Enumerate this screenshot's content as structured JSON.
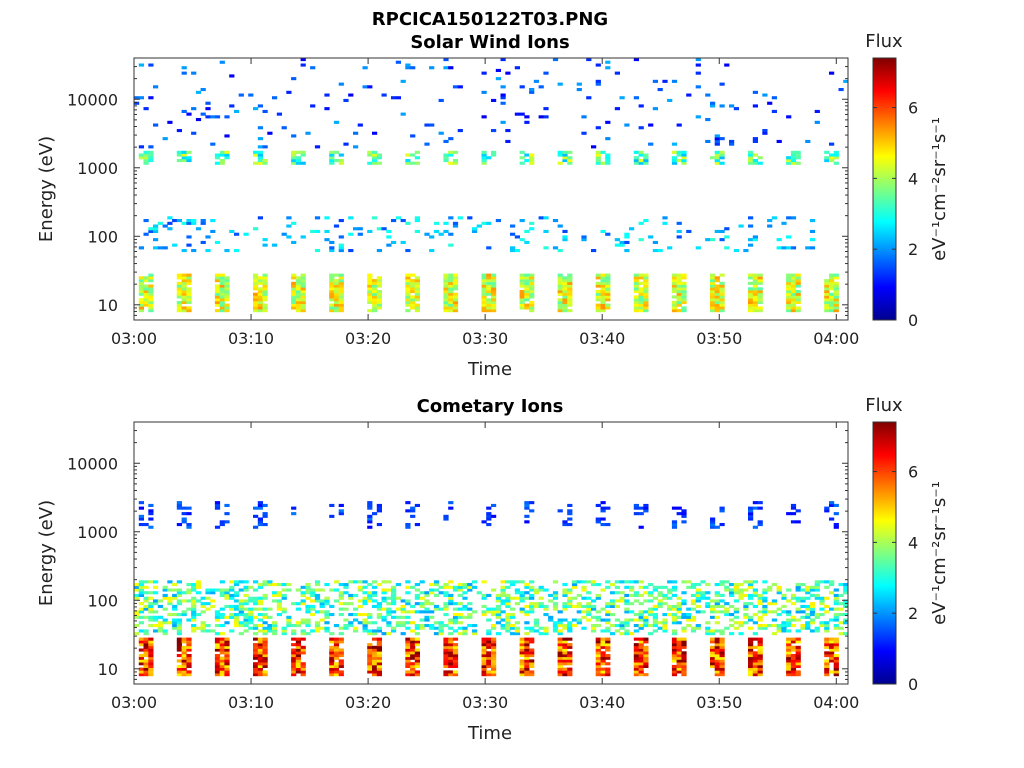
{
  "figure_title": "RPCICA150122T03.PNG",
  "chart_data": [
    {
      "type": "heatmap",
      "title": "Solar Wind Ions",
      "xlabel": "Time",
      "ylabel": "Energy (eV)",
      "x_ticks": [
        "03:00",
        "03:10",
        "03:20",
        "03:30",
        "03:40",
        "03:50",
        "04:00"
      ],
      "x_range_minutes": [
        0,
        61
      ],
      "y_scale": "log",
      "y_ticks": [
        10,
        100,
        1000,
        10000
      ],
      "y_tick_labels": [
        "10",
        "100",
        "1000",
        "10000"
      ],
      "ylim": [
        6,
        40000
      ],
      "colorbar": {
        "label": "Flux",
        "units": "eV⁻¹cm⁻²sr⁻¹s⁻¹",
        "ticks": [
          0,
          2,
          4,
          6
        ],
        "range": [
          0,
          7.4
        ],
        "colormap": "jet"
      },
      "scan_period_minutes": 3.25,
      "bands": [
        {
          "name": "low",
          "emin": 8,
          "emax": 28,
          "level": 4.5
        },
        {
          "name": "mid",
          "emin": 60,
          "emax": 200,
          "level": 2.5
        },
        {
          "name": "peak",
          "emin": 1100,
          "emax": 1800,
          "level": 3.8
        },
        {
          "name": "high",
          "emin": 2000,
          "emax": 40000,
          "level": 1.5
        }
      ]
    },
    {
      "type": "heatmap",
      "title": "Cometary Ions",
      "xlabel": "Time",
      "ylabel": "Energy (eV)",
      "x_ticks": [
        "03:00",
        "03:10",
        "03:20",
        "03:30",
        "03:40",
        "03:50",
        "04:00"
      ],
      "x_range_minutes": [
        0,
        61
      ],
      "y_scale": "log",
      "y_ticks": [
        10,
        100,
        1000,
        10000
      ],
      "y_tick_labels": [
        "10",
        "100",
        "1000",
        "10000"
      ],
      "ylim": [
        6,
        40000
      ],
      "colorbar": {
        "label": "Flux",
        "units": "eV⁻¹cm⁻²sr⁻¹s⁻¹",
        "ticks": [
          0,
          2,
          4,
          6
        ],
        "range": [
          0,
          7.4
        ],
        "colormap": "jet"
      },
      "scan_period_minutes": 3.25,
      "bands": [
        {
          "name": "low",
          "emin": 8,
          "emax": 28,
          "level": 6.2
        },
        {
          "name": "mid",
          "emin": 30,
          "emax": 200,
          "level": 3.8
        },
        {
          "name": "peak",
          "emin": 1100,
          "emax": 2800,
          "level": 1.5
        }
      ]
    }
  ]
}
